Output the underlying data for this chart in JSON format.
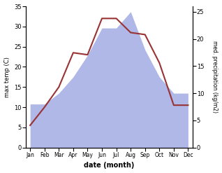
{
  "months": [
    "Jan",
    "Feb",
    "Mar",
    "Apr",
    "May",
    "Jun",
    "Jul",
    "Aug",
    "Sep",
    "Oct",
    "Nov",
    "Dec"
  ],
  "temperature": [
    5.5,
    10.0,
    15.0,
    23.5,
    23.0,
    32.0,
    32.0,
    28.5,
    28.0,
    21.0,
    10.5,
    10.5
  ],
  "precipitation": [
    8,
    8,
    10,
    13,
    17,
    22,
    22,
    25,
    18,
    13,
    10,
    10
  ],
  "temp_color": "#993333",
  "precip_color": "#b0b8e8",
  "temp_ylim": [
    0,
    35
  ],
  "precip_ylim": [
    0,
    26
  ],
  "temp_yticks": [
    0,
    5,
    10,
    15,
    20,
    25,
    30,
    35
  ],
  "precip_yticks": [
    0,
    5,
    10,
    15,
    20,
    25
  ],
  "ylabel_left": "max temp (C)",
  "ylabel_right": "med. precipitation (kg/m2)",
  "xlabel": "date (month)",
  "background_color": "#ffffff"
}
